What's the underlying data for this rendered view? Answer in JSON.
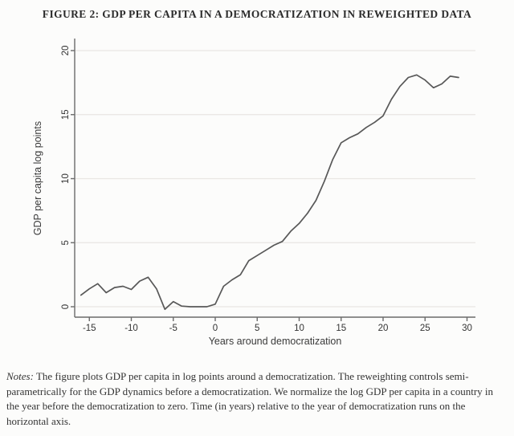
{
  "figure": {
    "title": "FIGURE 2: GDP PER CAPITA IN A DEMOCRATIZATION IN REWEIGHTED DATA",
    "notes_label": "Notes:",
    "notes_text": " The figure plots GDP per capita in log points around a democratization. The reweighting controls semi-parametrically for the GDP dynamics before a democratization. We normalize the log GDP per capita in a country in the year before the democratization to zero. Time (in years) relative to the year of democratization runs on the horizontal axis."
  },
  "chart_data": {
    "type": "line",
    "title": "",
    "xlabel": "Years around democratization",
    "ylabel": "GDP per capita log points",
    "x_ticks": [
      -15,
      -10,
      -5,
      0,
      5,
      10,
      15,
      20,
      25,
      30
    ],
    "y_ticks": [
      0,
      5,
      10,
      15,
      20
    ],
    "xlim": [
      -16.8,
      31
    ],
    "ylim": [
      -0.8,
      20.6
    ],
    "grid": "horizontal",
    "legend": "none",
    "line_color": "#585858",
    "grid_color": "#e9e6e3",
    "axis_color": "#6b6b6b",
    "series": [
      {
        "name": "GDP per capita log points",
        "x": [
          -16,
          -15,
          -14,
          -13,
          -12,
          -11,
          -10,
          -9,
          -8,
          -7,
          -6,
          -5,
          -4,
          -3,
          -2,
          -1,
          0,
          1,
          2,
          3,
          4,
          5,
          6,
          7,
          8,
          9,
          10,
          11,
          12,
          13,
          14,
          15,
          16,
          17,
          18,
          19,
          20,
          21,
          22,
          23,
          24,
          25,
          26,
          27,
          28,
          29
        ],
        "y": [
          0.9,
          1.4,
          1.8,
          1.1,
          1.5,
          1.6,
          1.35,
          2.0,
          2.3,
          1.4,
          -0.2,
          0.4,
          0.05,
          0.0,
          0.0,
          0.0,
          0.2,
          1.6,
          2.1,
          2.5,
          3.6,
          4.0,
          4.4,
          4.8,
          5.1,
          5.9,
          6.5,
          7.3,
          8.3,
          9.8,
          11.5,
          12.8,
          13.2,
          13.5,
          14.0,
          14.4,
          14.9,
          16.2,
          17.2,
          17.9,
          18.1,
          17.7,
          17.1,
          17.4,
          18.0,
          17.9
        ]
      }
    ]
  }
}
